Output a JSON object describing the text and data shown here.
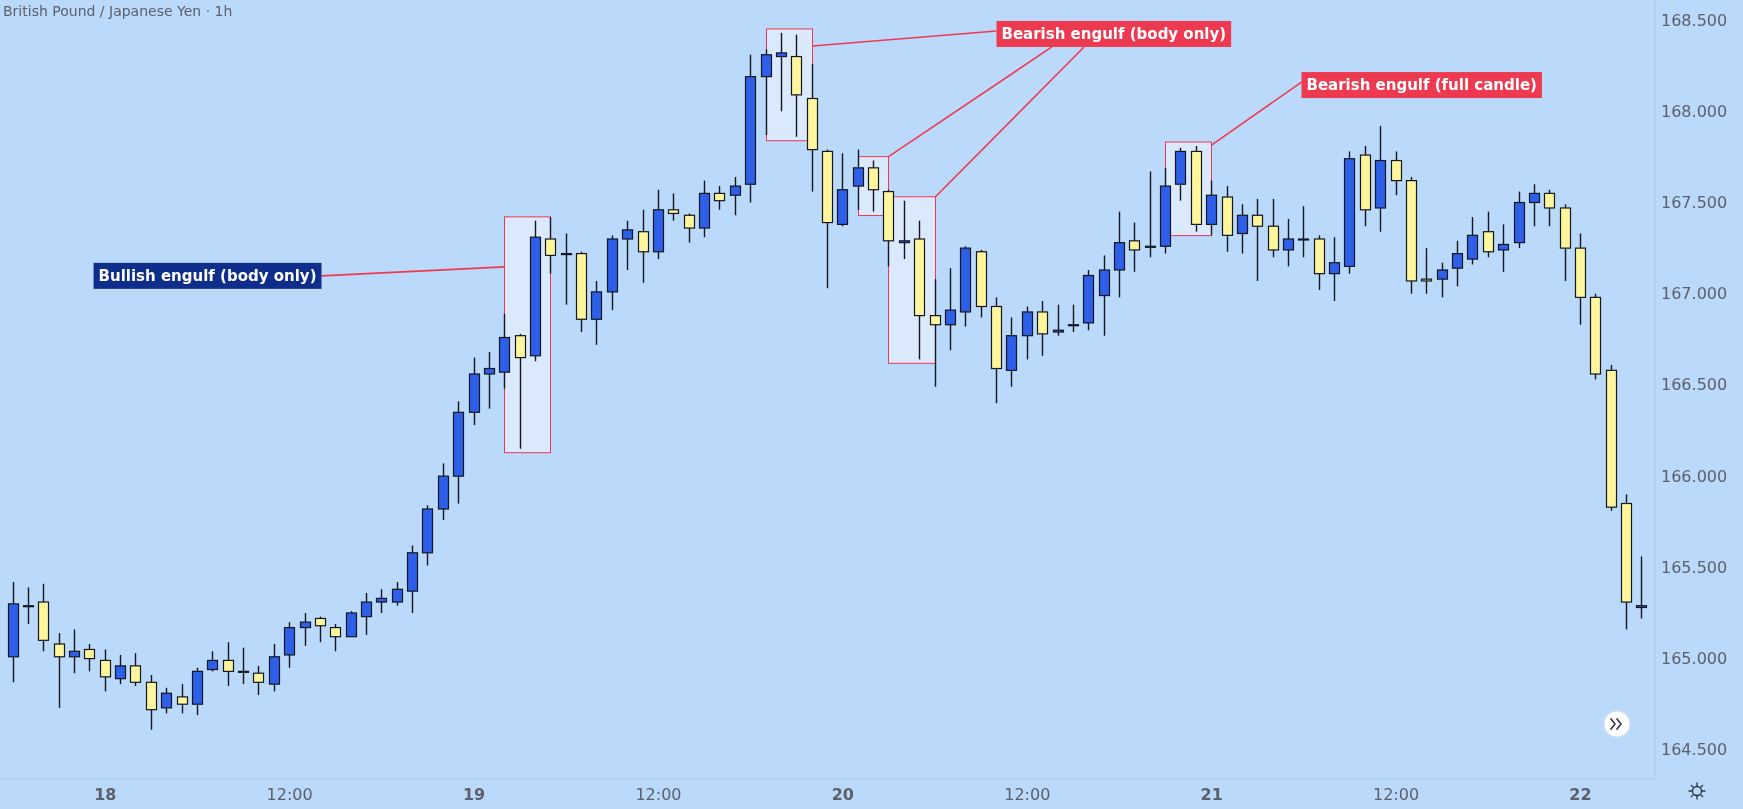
{
  "chart_data": {
    "type": "candlestick",
    "title": "British Pound / Japanese Yen · 1h",
    "categories": [
      null,
      null,
      null,
      null,
      null,
      null,
      "18",
      null,
      null,
      null,
      null,
      null,
      null,
      null,
      null,
      null,
      null,
      null,
      "12:00",
      null,
      null,
      null,
      null,
      null,
      null,
      null,
      null,
      null,
      null,
      null,
      "19",
      null,
      null,
      null,
      null,
      null,
      null,
      null,
      null,
      null,
      null,
      null,
      "12:00",
      null,
      null,
      null,
      null,
      null,
      null,
      null,
      null,
      null,
      null,
      null,
      "20",
      null,
      null,
      null,
      null,
      null,
      null,
      null,
      null,
      null,
      null,
      null,
      "12:00",
      null,
      null,
      null,
      null,
      null,
      null,
      null,
      null,
      null,
      null,
      null,
      "21",
      null,
      null,
      null,
      null,
      null,
      null,
      null,
      null,
      null,
      null,
      null,
      "12:00",
      null,
      null,
      null,
      null,
      null,
      null,
      null,
      null,
      null,
      null,
      null,
      "22",
      null,
      null,
      null,
      null
    ],
    "ohlc": [
      [
        165.01,
        165.42,
        164.87,
        165.3
      ],
      [
        165.29,
        165.39,
        165.19,
        165.29
      ],
      [
        165.31,
        165.41,
        165.04,
        165.1
      ],
      [
        165.08,
        165.14,
        164.73,
        165.01
      ],
      [
        165.01,
        165.16,
        164.92,
        165.04
      ],
      [
        165.05,
        165.08,
        164.93,
        165.0
      ],
      [
        164.99,
        165.05,
        164.82,
        164.9
      ],
      [
        164.89,
        165.02,
        164.86,
        164.96
      ],
      [
        164.96,
        165.03,
        164.85,
        164.87
      ],
      [
        164.87,
        164.91,
        164.61,
        164.72
      ],
      [
        164.73,
        164.84,
        164.7,
        164.81
      ],
      [
        164.79,
        164.86,
        164.7,
        164.75
      ],
      [
        164.75,
        164.95,
        164.69,
        164.93
      ],
      [
        164.94,
        165.04,
        164.93,
        164.99
      ],
      [
        164.99,
        165.09,
        164.85,
        164.93
      ],
      [
        164.93,
        165.06,
        164.86,
        164.93
      ],
      [
        164.92,
        164.96,
        164.8,
        164.87
      ],
      [
        164.86,
        165.08,
        164.82,
        165.01
      ],
      [
        165.02,
        165.2,
        164.95,
        165.17
      ],
      [
        165.17,
        165.25,
        165.07,
        165.2
      ],
      [
        165.22,
        165.23,
        165.09,
        165.18
      ],
      [
        165.17,
        165.19,
        165.04,
        165.12
      ],
      [
        165.12,
        165.26,
        165.12,
        165.25
      ],
      [
        165.23,
        165.36,
        165.13,
        165.31
      ],
      [
        165.31,
        165.38,
        165.25,
        165.33
      ],
      [
        165.31,
        165.42,
        165.29,
        165.38
      ],
      [
        165.37,
        165.62,
        165.25,
        165.58
      ],
      [
        165.58,
        165.84,
        165.51,
        165.82
      ],
      [
        165.82,
        166.07,
        165.76,
        166.0
      ],
      [
        166.0,
        166.41,
        165.85,
        166.35
      ],
      [
        166.35,
        166.65,
        166.28,
        166.56
      ],
      [
        166.56,
        166.68,
        166.37,
        166.59
      ],
      [
        166.57,
        166.89,
        166.48,
        166.76
      ],
      [
        166.77,
        166.78,
        166.15,
        166.65
      ],
      [
        166.66,
        167.4,
        166.63,
        167.31
      ],
      [
        167.3,
        167.42,
        167.11,
        167.21
      ],
      [
        167.22,
        167.33,
        166.94,
        167.22
      ],
      [
        167.22,
        167.23,
        166.79,
        166.86
      ],
      [
        166.86,
        167.07,
        166.72,
        167.01
      ],
      [
        167.01,
        167.32,
        166.91,
        167.3
      ],
      [
        167.3,
        167.4,
        167.13,
        167.35
      ],
      [
        167.34,
        167.46,
        167.06,
        167.23
      ],
      [
        167.23,
        167.57,
        167.19,
        167.46
      ],
      [
        167.46,
        167.55,
        167.4,
        167.44
      ],
      [
        167.43,
        167.44,
        167.28,
        167.36
      ],
      [
        167.36,
        167.62,
        167.31,
        167.55
      ],
      [
        167.55,
        167.59,
        167.46,
        167.51
      ],
      [
        167.54,
        167.64,
        167.43,
        167.59
      ],
      [
        167.6,
        168.31,
        167.5,
        168.19
      ],
      [
        168.19,
        168.34,
        167.87,
        168.31
      ],
      [
        168.3,
        168.43,
        168.0,
        168.32
      ],
      [
        168.3,
        168.42,
        167.86,
        168.09
      ],
      [
        168.07,
        168.26,
        167.56,
        167.79
      ],
      [
        167.78,
        167.79,
        167.03,
        167.39
      ],
      [
        167.38,
        167.77,
        167.37,
        167.57
      ],
      [
        167.59,
        167.79,
        167.46,
        167.69
      ],
      [
        167.69,
        167.73,
        167.45,
        167.57
      ],
      [
        167.56,
        167.57,
        167.15,
        167.29
      ],
      [
        167.28,
        167.51,
        167.19,
        167.29
      ],
      [
        167.3,
        167.4,
        166.64,
        166.88
      ],
      [
        166.88,
        167.08,
        166.49,
        166.83
      ],
      [
        166.83,
        167.14,
        166.69,
        166.91
      ],
      [
        166.9,
        167.26,
        166.82,
        167.25
      ],
      [
        167.23,
        167.24,
        166.87,
        166.93
      ],
      [
        166.93,
        166.98,
        166.4,
        166.59
      ],
      [
        166.58,
        166.87,
        166.49,
        166.77
      ],
      [
        166.77,
        166.93,
        166.64,
        166.9
      ],
      [
        166.9,
        166.96,
        166.66,
        166.78
      ],
      [
        166.79,
        166.94,
        166.77,
        166.8
      ],
      [
        166.83,
        166.94,
        166.79,
        166.83
      ],
      [
        166.84,
        167.13,
        166.8,
        167.1
      ],
      [
        166.99,
        167.21,
        166.77,
        167.13
      ],
      [
        167.13,
        167.45,
        166.98,
        167.28
      ],
      [
        167.29,
        167.39,
        167.12,
        167.24
      ],
      [
        167.26,
        167.67,
        167.2,
        167.26
      ],
      [
        167.26,
        167.69,
        167.22,
        167.59
      ],
      [
        167.6,
        167.8,
        167.51,
        167.78
      ],
      [
        167.78,
        167.81,
        167.34,
        167.38
      ],
      [
        167.38,
        167.62,
        167.32,
        167.54
      ],
      [
        167.53,
        167.59,
        167.23,
        167.32
      ],
      [
        167.33,
        167.49,
        167.22,
        167.43
      ],
      [
        167.43,
        167.52,
        167.07,
        167.37
      ],
      [
        167.37,
        167.52,
        167.2,
        167.24
      ],
      [
        167.24,
        167.41,
        167.15,
        167.3
      ],
      [
        167.3,
        167.48,
        167.2,
        167.3
      ],
      [
        167.3,
        167.32,
        167.02,
        167.11
      ],
      [
        167.11,
        167.31,
        166.96,
        167.17
      ],
      [
        167.15,
        167.78,
        167.11,
        167.74
      ],
      [
        167.76,
        167.81,
        167.37,
        167.46
      ],
      [
        167.47,
        167.92,
        167.34,
        167.73
      ],
      [
        167.73,
        167.78,
        167.54,
        167.62
      ],
      [
        167.62,
        167.64,
        167.0,
        167.07
      ],
      [
        167.08,
        167.25,
        167.0,
        167.07
      ],
      [
        167.08,
        167.17,
        166.98,
        167.13
      ],
      [
        167.14,
        167.29,
        167.04,
        167.22
      ],
      [
        167.19,
        167.42,
        167.16,
        167.32
      ],
      [
        167.34,
        167.45,
        167.2,
        167.23
      ],
      [
        167.24,
        167.38,
        167.12,
        167.27
      ],
      [
        167.28,
        167.56,
        167.25,
        167.5
      ],
      [
        167.5,
        167.6,
        167.37,
        167.55
      ],
      [
        167.55,
        167.57,
        167.37,
        167.47
      ],
      [
        167.47,
        167.49,
        167.07,
        167.25
      ],
      [
        167.25,
        167.33,
        166.83,
        166.98
      ],
      [
        166.98,
        167.0,
        166.53,
        166.56
      ],
      [
        166.58,
        166.61,
        165.81,
        165.83
      ],
      [
        165.85,
        165.9,
        165.16,
        165.31
      ],
      [
        165.28,
        165.56,
        165.22,
        165.29
      ]
    ],
    "colors": [
      "#2d5fe8",
      "#2d5fe8",
      "#fff59d",
      "#fff59d",
      "#2d5fe8",
      "#fff59d",
      "#fff59d",
      "#2d5fe8",
      "#fff59d",
      "#fff59d",
      "#2d5fe8",
      "#fff59d",
      "#2d5fe8",
      "#2d5fe8",
      "#fff59d",
      "#2d5fe8",
      "#fff59d",
      "#2d5fe8",
      "#2d5fe8",
      "#2d5fe8",
      "#fff59d",
      "#fff59d",
      "#2d5fe8",
      "#2d5fe8",
      "#2d5fe8",
      "#2d5fe8",
      "#2d5fe8",
      "#2d5fe8",
      "#2d5fe8",
      "#2d5fe8",
      "#2d5fe8",
      "#2d5fe8",
      "#2d5fe8",
      "#fff59d",
      "#2d5fe8",
      "#fff59d",
      "#2d5fe8",
      "#fff59d",
      "#2d5fe8",
      "#2d5fe8",
      "#2d5fe8",
      "#fff59d",
      "#2d5fe8",
      "#fff59d",
      "#fff59d",
      "#2d5fe8",
      "#fff59d",
      "#2d5fe8",
      "#2d5fe8",
      "#2d5fe8",
      "#2d5fe8",
      "#fff59d",
      "#fff59d",
      "#fff59d",
      "#2d5fe8",
      "#2d5fe8",
      "#fff59d",
      "#fff59d",
      "#2d5fe8",
      "#fff59d",
      "#fff59d",
      "#2d5fe8",
      "#2d5fe8",
      "#fff59d",
      "#fff59d",
      "#2d5fe8",
      "#2d5fe8",
      "#fff59d",
      "#2d5fe8",
      "#2d5fe8",
      "#2d5fe8",
      "#2d5fe8",
      "#2d5fe8",
      "#fff59d",
      "#2d5fe8",
      "#2d5fe8",
      "#2d5fe8",
      "#fff59d",
      "#2d5fe8",
      "#fff59d",
      "#2d5fe8",
      "#fff59d",
      "#fff59d",
      "#2d5fe8",
      "#2d5fe8",
      "#fff59d",
      "#2d5fe8",
      "#2d5fe8",
      "#fff59d",
      "#2d5fe8",
      "#fff59d",
      "#fff59d",
      "#fff59d",
      "#2d5fe8",
      "#2d5fe8",
      "#2d5fe8",
      "#fff59d",
      "#2d5fe8",
      "#2d5fe8",
      "#2d5fe8",
      "#fff59d",
      "#fff59d",
      "#fff59d",
      "#fff59d",
      "#fff59d",
      "#fff59d",
      "#2d5fe8"
    ],
    "ylim": [
      164.34,
      168.61
    ],
    "yticks": [
      {
        "value": 164.5,
        "label": "164.500"
      },
      {
        "value": 165,
        "label": "165.000"
      },
      {
        "value": 165.5,
        "label": "165.500"
      },
      {
        "value": 166,
        "label": "166.000"
      },
      {
        "value": 166.5,
        "label": "166.500"
      },
      {
        "value": 167,
        "label": "167.000"
      },
      {
        "value": 167.5,
        "label": "167.500"
      },
      {
        "value": 168,
        "label": "168.000"
      },
      {
        "value": 168.5,
        "label": "168.500"
      }
    ],
    "annotations": [
      "Bullish engulf (body only)",
      "Bearish engulf (body only)",
      "Bearish engulf (full candle)"
    ]
  }
}
